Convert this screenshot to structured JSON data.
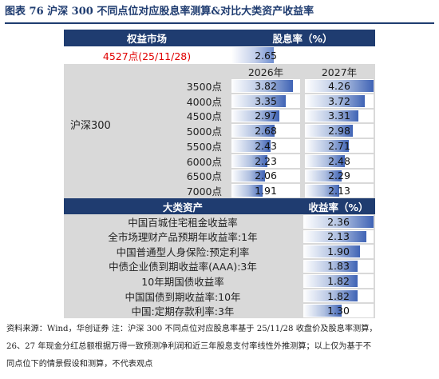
{
  "figure": {
    "title": "图表 76   沪深 300 不同点位对应股息率测算&对比大类资产收益率"
  },
  "top_table": {
    "col_headers": {
      "market": "权益市场",
      "yield": "股息率（%）"
    },
    "current": {
      "label": "4527点(25/11/28)",
      "value": 2.65
    },
    "year_headers": [
      "2026年",
      "2027年"
    ],
    "group_label": "沪深300",
    "rows": [
      {
        "point": "3500点",
        "y2026": 3.82,
        "y2027": 4.26
      },
      {
        "point": "4000点",
        "y2026": 3.35,
        "y2027": 3.72
      },
      {
        "point": "4500点",
        "y2026": 2.97,
        "y2027": 3.31
      },
      {
        "point": "5000点",
        "y2026": 2.68,
        "y2027": 2.98
      },
      {
        "point": "5500点",
        "y2026": 2.43,
        "y2027": 2.71
      },
      {
        "point": "6000点",
        "y2026": 2.23,
        "y2027": 2.48
      },
      {
        "point": "6500点",
        "y2026": 2.06,
        "y2027": 2.29
      },
      {
        "point": "7000点",
        "y2026": 1.91,
        "y2027": 2.13
      }
    ]
  },
  "bottom_table": {
    "col_headers": {
      "asset": "大类资产",
      "yield": "收益率（%）"
    },
    "rows": [
      {
        "asset": "中国百城住宅租金收益率",
        "value": 2.36
      },
      {
        "asset": "全市场理财产品预期年收益率:1年",
        "value": 2.13
      },
      {
        "asset": "中国普通型人身保险:预定利率",
        "value": 1.9
      },
      {
        "asset": "中债企业债到期收益率(AAA):3年",
        "value": 1.83
      },
      {
        "asset": "10年期国债收益率",
        "value": 1.82
      },
      {
        "asset": "中国国债到期收益率:10年",
        "value": 1.82
      },
      {
        "asset": "中国:定期存款利率:3年",
        "value": 1.3
      }
    ]
  },
  "source": {
    "line1": "资料来源：Wind，华创证券   注：沪深 300 不同点位对应股息率基于 25/11/28 收盘价及股息率测算，",
    "line2": "26、27 年现金分红总额根据万得一致预测净利润和近三年股息支付率线性外推测算；以上仅为基于不",
    "line3": "同点位下的情景假设和测算，不代表观点"
  },
  "colors": {
    "header_bg": "#1f3c70",
    "band_bg": "#d9d9d9",
    "current_text": "#e00000",
    "bar_dark": "#3f63b5"
  }
}
